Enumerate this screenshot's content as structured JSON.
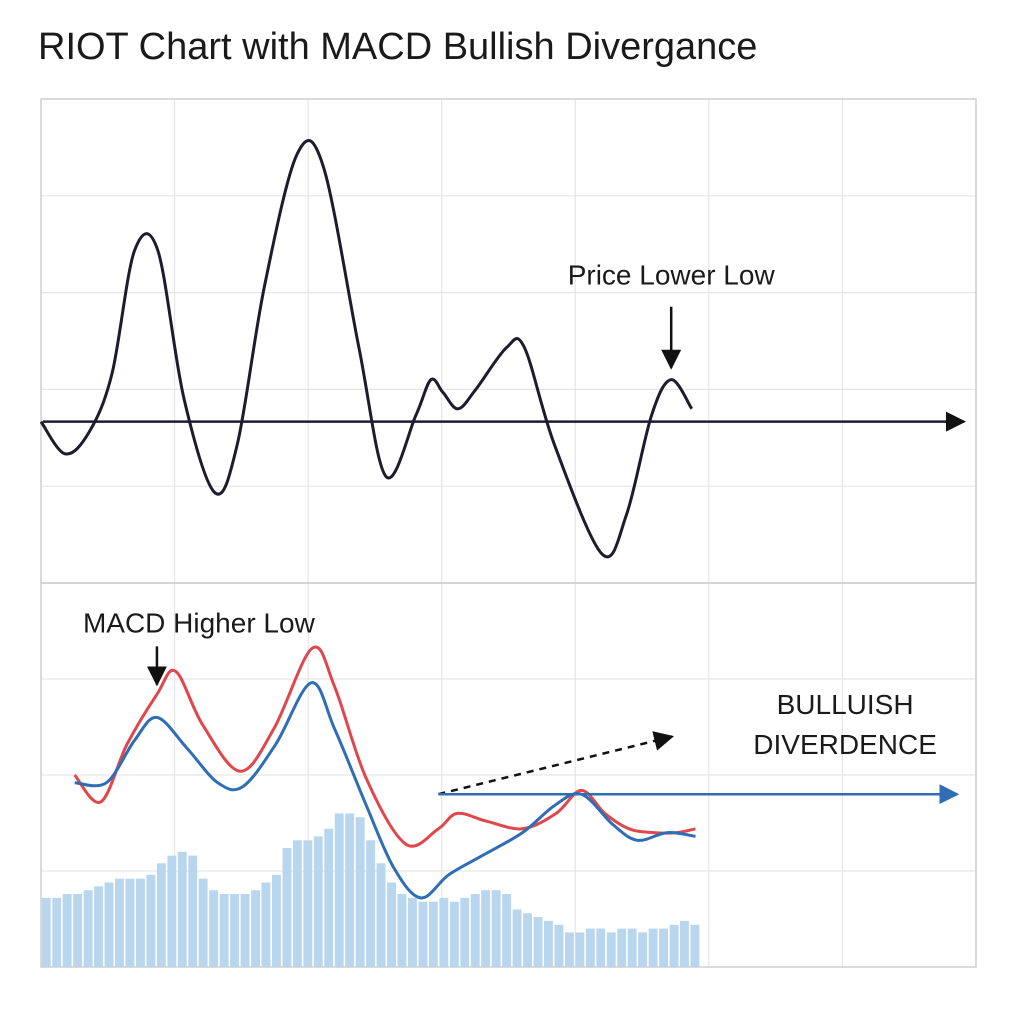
{
  "chart_data": [
    {
      "panel": "price",
      "type": "line",
      "title": "RIOT Chart with MACD Bullish Divergance",
      "xlabel": "",
      "ylabel": "",
      "grid": true,
      "colors": {
        "line": "#1c1c2e",
        "axis": "#1c1c2e",
        "grid": "#e6e6e6",
        "border": "#cfcfcf"
      },
      "x_range": [
        0,
        100
      ],
      "y_range": [
        -5,
        10
      ],
      "series": [
        {
          "values": [
            [
              0.0,
              0.0
            ],
            [
              2.6,
              -1.0
            ],
            [
              5.2,
              -0.3
            ],
            [
              7.6,
              1.5
            ],
            [
              10.0,
              5.3
            ],
            [
              12.5,
              5.3
            ],
            [
              15.3,
              0.7
            ],
            [
              18.6,
              -2.2
            ],
            [
              21.0,
              -0.7
            ],
            [
              23.9,
              4.2
            ],
            [
              27.4,
              8.3
            ],
            [
              30.2,
              7.9
            ],
            [
              34.0,
              2.3
            ],
            [
              36.9,
              -1.7
            ],
            [
              40.1,
              0.2
            ],
            [
              41.7,
              1.3
            ],
            [
              43.0,
              0.9
            ],
            [
              44.6,
              0.4
            ],
            [
              46.5,
              1.0
            ],
            [
              49.8,
              2.3
            ],
            [
              51.7,
              2.3
            ],
            [
              54.9,
              -0.7
            ],
            [
              60.0,
              -4.1
            ],
            [
              62.6,
              -2.9
            ],
            [
              65.3,
              0.2
            ],
            [
              67.4,
              1.3
            ],
            [
              69.6,
              0.4
            ]
          ]
        }
      ],
      "annotations": [
        {
          "text": "Price Lower Low",
          "x": 67.4,
          "y": 1.3,
          "arrow": "down"
        }
      ]
    },
    {
      "panel": "macd",
      "type": "line",
      "title": "",
      "grid": true,
      "x_range": [
        0,
        100
      ],
      "y_range": [
        0,
        10
      ],
      "colors": {
        "macd_line": "#e0474c",
        "signal_line": "#2f6db5",
        "histogram": "#b9d6ef"
      },
      "series": [
        {
          "color": "#e0474c",
          "values": [
            [
              3.6,
              5.0
            ],
            [
              6.4,
              4.3
            ],
            [
              9.2,
              5.8
            ],
            [
              12.4,
              7.1
            ],
            [
              14.4,
              7.7
            ],
            [
              17.3,
              6.3
            ],
            [
              21.3,
              5.1
            ],
            [
              24.9,
              6.2
            ],
            [
              29.0,
              8.3
            ],
            [
              31.4,
              7.3
            ],
            [
              34.8,
              4.9
            ],
            [
              39.0,
              3.2
            ],
            [
              42.5,
              3.6
            ],
            [
              44.5,
              4.0
            ],
            [
              47.6,
              3.8
            ],
            [
              51.5,
              3.6
            ],
            [
              55.1,
              4.0
            ],
            [
              57.8,
              4.6
            ],
            [
              60.3,
              4.0
            ],
            [
              62.9,
              3.6
            ],
            [
              65.5,
              3.5
            ],
            [
              68.0,
              3.5
            ],
            [
              70.0,
              3.6
            ]
          ]
        },
        {
          "color": "#2f6db5",
          "values": [
            [
              3.6,
              4.8
            ],
            [
              7.0,
              4.8
            ],
            [
              10.0,
              5.9
            ],
            [
              12.4,
              6.5
            ],
            [
              15.6,
              5.7
            ],
            [
              18.9,
              4.8
            ],
            [
              21.6,
              4.7
            ],
            [
              25.1,
              5.8
            ],
            [
              28.9,
              7.4
            ],
            [
              31.4,
              6.2
            ],
            [
              34.8,
              4.2
            ],
            [
              37.7,
              2.6
            ],
            [
              40.6,
              1.8
            ],
            [
              43.6,
              2.4
            ],
            [
              47.2,
              2.9
            ],
            [
              51.5,
              3.5
            ],
            [
              54.9,
              4.2
            ],
            [
              57.8,
              4.5
            ],
            [
              61.2,
              3.7
            ],
            [
              63.8,
              3.3
            ],
            [
              67.0,
              3.5
            ],
            [
              70.0,
              3.4
            ]
          ]
        }
      ],
      "histogram": {
        "color": "#b9d6ef",
        "values": [
          1.8,
          1.8,
          1.9,
          1.9,
          2.0,
          2.1,
          2.2,
          2.3,
          2.3,
          2.3,
          2.4,
          2.7,
          2.9,
          3.0,
          2.9,
          2.3,
          2.0,
          1.9,
          1.9,
          1.9,
          2.0,
          2.2,
          2.4,
          3.1,
          3.3,
          3.3,
          3.4,
          3.6,
          4.0,
          4.0,
          3.9,
          3.3,
          2.7,
          2.2,
          1.9,
          1.8,
          1.7,
          1.7,
          1.8,
          1.7,
          1.8,
          1.9,
          2.0,
          2.0,
          1.9,
          1.5,
          1.4,
          1.3,
          1.2,
          1.1,
          0.9,
          0.9,
          1.0,
          1.0,
          0.9,
          1.0,
          1.0,
          0.9,
          1.0,
          1.0,
          1.1,
          1.2,
          1.1
        ]
      },
      "annotations": [
        {
          "text": "MACD Higher Low",
          "x": 12.4,
          "y": 7.1,
          "arrow": "down"
        },
        {
          "text": "BULLUISH",
          "line": 1
        },
        {
          "text": "DIVERDENCE",
          "line": 2
        }
      ],
      "trend_arrows": [
        {
          "style": "dashed",
          "color": "#111111",
          "from": [
            42.5,
            4.5
          ],
          "to": [
            67.5,
            6.0
          ]
        },
        {
          "style": "solid",
          "color": "#2f6db5",
          "from": [
            42.5,
            4.5
          ],
          "to": [
            98.0,
            4.5
          ]
        }
      ]
    }
  ]
}
